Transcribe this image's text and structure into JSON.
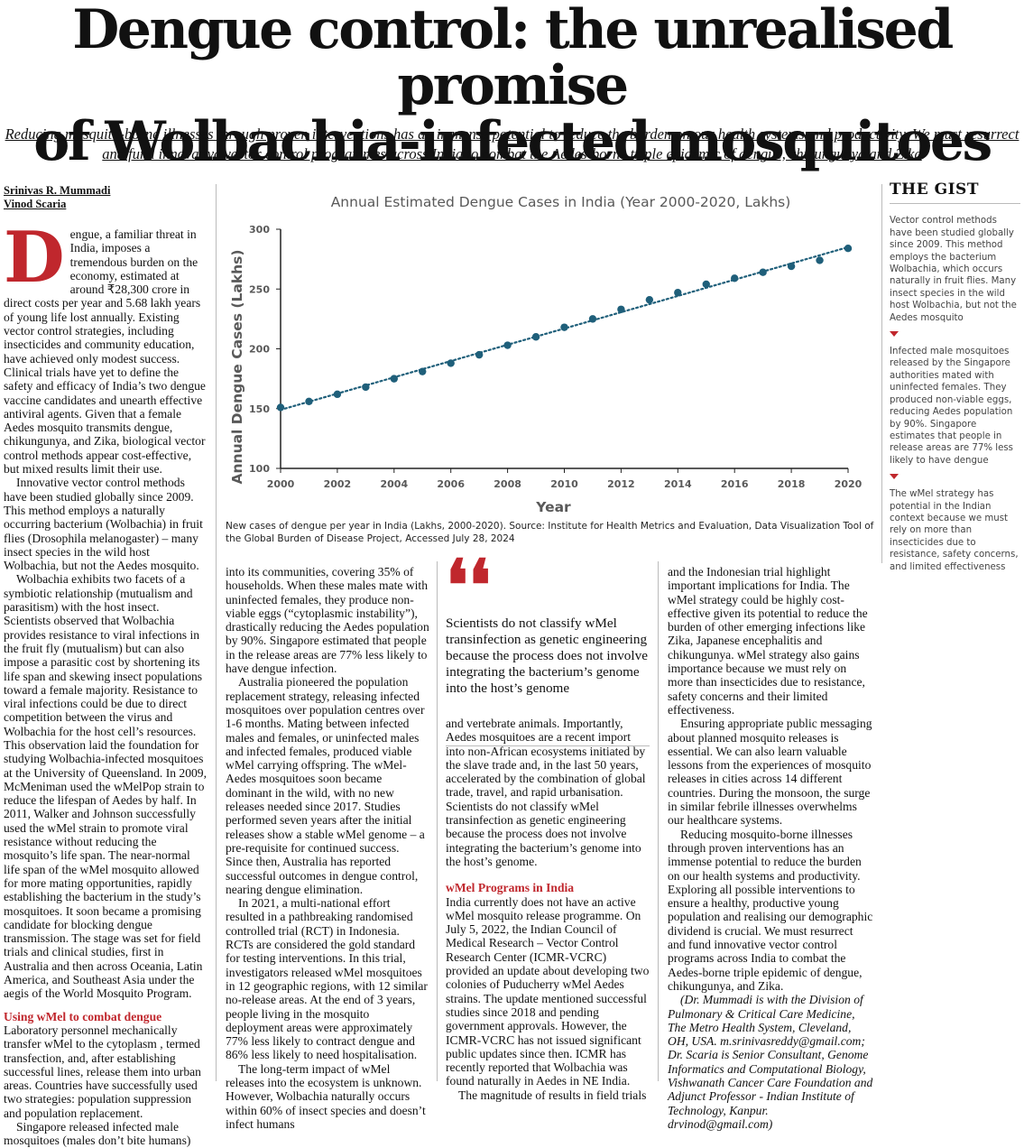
{
  "headline": {
    "line1": "Dengue control: the unrealised promise",
    "line2": "of Wolbachia-infected mosquitoes"
  },
  "standfirst": {
    "line1": "Reducing mosquito-borne illnesses through proven interventions has an immense potential to reduce the burden on our health systems and productivity. We must resurrect",
    "line2": "and fund innovative vector control programmes across India to combat the Aedes-borne triple epidemic of dengue, chikungunya and Zika"
  },
  "byline": {
    "author1": "Srinivas R. Mummadi",
    "author2": "Vinod Scaria"
  },
  "column1": {
    "dropcap": "D",
    "p1": "engue, a familiar threat in India, imposes a tremendous burden on the economy, estimated at around ₹28,300 crore in direct costs per year and 5.68 lakh years of young life lost annually. Existing vector control strategies, including insecticides and community education, have achieved only modest success. Clinical trials have yet to define the safety and efficacy of India’s two dengue vaccine candidates and unearth effective antiviral agents. Given that a female Aedes mosquito transmits dengue, chikungunya, and Zika, biological vector control methods appear cost-effective, but mixed results limit their use.",
    "p2": "Innovative vector control methods have been studied globally since 2009. This method employs a naturally occurring bacterium (Wolbachia) in fruit flies (Drosophila melanogaster) – many insect species in the wild host Wolbachia, but not the Aedes mosquito.",
    "p3": "Wolbachia exhibits two facets of a symbiotic relationship (mutualism and parasitism) with the host insect. Scientists observed that Wolbachia provides resistance to viral infections in the fruit fly (mutualism) but can also impose a parasitic cost by shortening its life span and skewing insect populations toward a female majority. Resistance to viral infections could be due to direct competition between the virus and Wolbachia for the host cell’s resources. This observation laid the foundation for studying Wolbachia-infected mosquitoes at the University of Queensland. In 2009, McMeniman used the wMelPop strain to reduce the lifespan of Aedes by half. In 2011, Walker and Johnson successfully used the wMel strain to promote viral resistance without reducing the mosquito’s life span. The near-normal life span of the wMel mosquito allowed for more mating opportunities, rapidly establishing the bacterium in the study’s mosquitoes. It soon became a promising candidate for blocking dengue transmission. The stage was set for field trials and clinical studies, first in Australia and then across Oceania, Latin America, and Southeast Asia under the aegis of the World Mosquito Program.",
    "subhead": "Using wMel to combat dengue",
    "p4": "Laboratory personnel mechanically transfer wMel to the cytoplasm , termed transfection, and, after establishing successful lines, release them into urban areas. Countries have successfully used two strategies: population suppression and population replacement.",
    "p5": "Singapore released infected male mosquitoes (males don’t bite humans)"
  },
  "column2": {
    "p1": "into its communities, covering 35% of households. When these males mate with uninfected females, they produce non-viable eggs (“cytoplasmic instability”), drastically reducing the Aedes population by 90%. Singapore estimated that people in the release areas are 77% less likely to have dengue infection.",
    "p2": "Australia pioneered the population replacement strategy, releasing infected mosquitoes over population centres over 1-6 months. Mating between infected males and females, or uninfected males and infected females, produced viable wMel carrying offspring. The wMel-Aedes mosquitoes soon became dominant in the wild, with no new releases needed since 2017. Studies performed seven years after the initial releases show a stable wMel genome – a pre-requisite for continued success. Since then, Australia has reported successful outcomes in dengue control, nearing dengue elimination.",
    "p3": "In 2021, a multi-national effort resulted in a pathbreaking randomised controlled trial (RCT) in Indonesia. RCTs are considered the gold standard for testing interventions. In this trial, investigators released wMel mosquitoes in 12 geographic regions, with 12 similar no-release areas. At the end of 3 years, people living in the mosquito deployment areas were approximately 77% less likely to contract dengue and 86% less likely to need hospitalisation.",
    "p4": "The long-term impact of wMel releases into the ecosystem is unknown. However, Wolbachia naturally occurs within 60% of insect species and doesn’t infect humans"
  },
  "pullquote": {
    "mark": "❛❛",
    "text": "Scientists do not classify wMel transinfection as genetic engineering because the process does not involve integrating the bacterium’s genome into the host’s genome"
  },
  "column3": {
    "p1": "and vertebrate animals. Importantly, Aedes mosquitoes are a recent import into non-African ecosystems initiated by the slave trade and, in the last 50 years, accelerated by the combination of global trade, travel, and rapid urbanisation. Scientists do not classify wMel transinfection as genetic engineering because the process does not involve integrating the bacterium’s genome into the host’s genome.",
    "subhead": "wMel Programs in India",
    "p2": "India currently does not have an active wMel mosquito release programme. On July 5, 2022, the Indian Council of Medical Research – Vector Control Research Center (ICMR-VCRC) provided an update about developing two colonies of Puducherry wMel Aedes strains. The update mentioned successful studies since 2018 and pending government approvals. However, the ICMR-VCRC has not issued significant public updates since then. ICMR has recently reported that Wolbachia was found naturally in Aedes in NE India.",
    "p3": "The magnitude of results in field trials"
  },
  "column4": {
    "p1": "and the Indonesian trial highlight important implications for India. The wMel strategy could be highly cost-effective given its potential to reduce the burden of other emerging infections like Zika, Japanese encephalitis and chikungunya. wMel strategy also gains importance because we must rely on more than insecticides due to resistance, safety concerns and their limited effectiveness.",
    "p2": "Ensuring appropriate public messaging about planned mosquito releases is essential. We can also learn valuable lessons from the experiences of mosquito releases in cities across 14 different countries. During the monsoon, the surge in similar febrile illnesses overwhelms our healthcare systems.",
    "p3": "Reducing mosquito-borne illnesses through proven interventions has an immense potential to reduce the burden on our health systems and productivity. Exploring all possible interventions to ensure a healthy, productive young population and realising our demographic dividend is crucial. We must resurrect and fund innovative vector control programs across India to combat the Aedes-borne triple epidemic of dengue, chikungunya, and Zika.",
    "bio": "(Dr. Mummadi is with the Division of Pulmonary & Critical Care Medicine, The Metro Health System, Cleveland, OH, USA. m.srinivasreddy@gmail.com; Dr. Scaria is Senior Consultant, Genome Informatics and Computational Biology, Vishwanath Cancer Care Foundation and Adjunct Professor - Indian Institute of Technology, Kanpur. drvinod@gmail.com)"
  },
  "gist": {
    "title": "THE GIST",
    "items": [
      "Vector control methods have been studied globally since 2009. This method employs the bacterium Wolbachia, which occurs naturally in fruit flies. Many insect species in the wild host Wolbachia, but not the Aedes mosquito",
      "Infected male mosquitoes released by the Singapore authorities mated with uninfected females. They produced non-viable eggs, reducing Aedes population by 90%. Singapore estimates that people in release areas are 77% less likely to have dengue",
      "The wMel strategy has potential in the Indian context because we must rely on more than insecticides due to resistance, safety concerns, and limited effectiveness"
    ]
  },
  "caption": "New cases of dengue per year in India (Lakhs, 2000-2020). Source: Institute for Health Metrics and Evaluation, Data Visualization Tool of the Global Burden of Disease Project, Accessed July 28, 2024",
  "chart_data": {
    "type": "scatter",
    "title": "Annual Estimated Dengue Cases in India (Year 2000-2020, Lakhs)",
    "xlabel": "Year",
    "ylabel": "Annual Dengue Cases (Lakhs)",
    "x": [
      2000,
      2001,
      2002,
      2003,
      2004,
      2005,
      2006,
      2007,
      2008,
      2009,
      2010,
      2011,
      2012,
      2013,
      2014,
      2015,
      2016,
      2017,
      2018,
      2019,
      2020
    ],
    "y": [
      151,
      156,
      162,
      168,
      175,
      181,
      188,
      195,
      203,
      210,
      218,
      225,
      233,
      241,
      247,
      254,
      259,
      264,
      269,
      274,
      284
    ],
    "xticks": [
      2000,
      2002,
      2004,
      2006,
      2008,
      2010,
      2012,
      2014,
      2016,
      2018,
      2020
    ],
    "yticks": [
      100,
      150,
      200,
      250,
      300
    ],
    "xlim": [
      2000,
      2020
    ],
    "ylim": [
      100,
      300
    ],
    "trendline": "linear dotted",
    "grid": false,
    "legend": "none",
    "marker_color": "#1f5f7a",
    "trend_color": "#1f5f7a"
  }
}
